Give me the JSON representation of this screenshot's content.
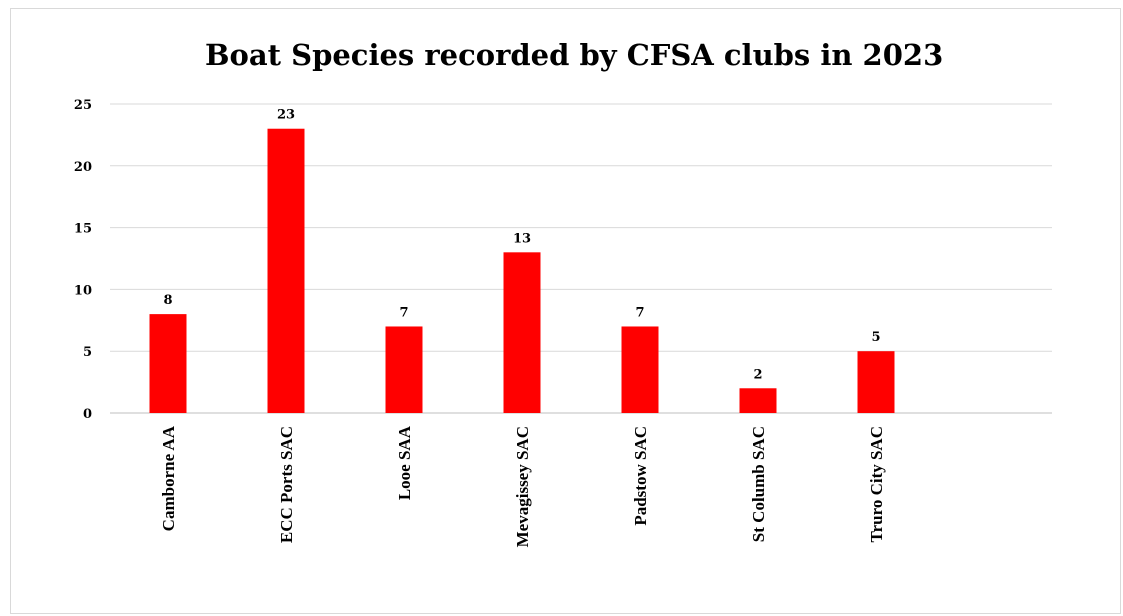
{
  "chart_data": {
    "type": "bar",
    "title": "Boat Species recorded by CFSA clubs in 2023",
    "xlabel": "",
    "ylabel": "",
    "categories": [
      "Camborne AA",
      "ECC Ports SAC",
      "Looe SAA",
      "Mevagissey SAC",
      "Padstow SAC",
      "St Columb SAC",
      "Truro City SAC"
    ],
    "values": [
      8,
      23,
      7,
      13,
      7,
      2,
      5
    ],
    "ylim": [
      0,
      25
    ],
    "yticks": [
      0,
      5,
      10,
      15,
      20,
      25
    ],
    "grid": true,
    "legend": "none",
    "bar_color": "#ff0000",
    "data_labels": true
  }
}
